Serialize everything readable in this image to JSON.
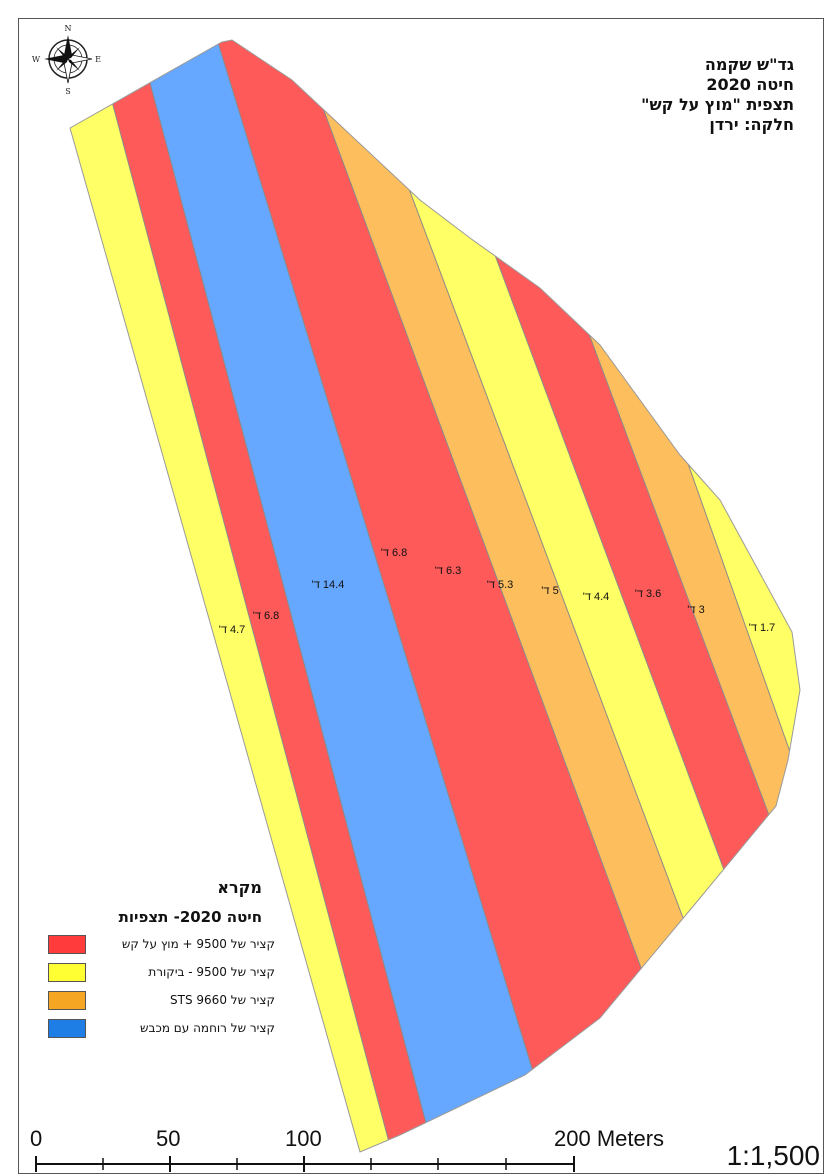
{
  "title": {
    "line1": "גד\"ש שקמה",
    "line2": "חיטה 2020",
    "line3": "תצפית \"מוץ על קש\"",
    "line4": "חלקה: ירדן"
  },
  "compass": {
    "n": "N",
    "s": "S",
    "e": "E",
    "w": "W"
  },
  "strips": [
    {
      "treatment": "control",
      "color": "#ffff66",
      "label": "4.7 ד'"
    },
    {
      "treatment": "chaff_on_straw",
      "color": "#ff5a5a",
      "label": "6.8 ד'"
    },
    {
      "treatment": "spreader",
      "color": "#66a8ff",
      "label": "14.4 ד'"
    },
    {
      "treatment": "chaff_on_straw",
      "color": "#ff5a5a",
      "label": "6.8 ד'"
    },
    {
      "treatment": "sts",
      "color": "#fdbf5e",
      "label": "6.3 ד'"
    },
    {
      "treatment": "control",
      "color": "#ffff66",
      "label": "5.3 ד'"
    },
    {
      "treatment": "chaff_on_straw",
      "color": "#ff5a5a",
      "label": "5 ד'"
    },
    {
      "treatment": "sts",
      "color": "#fdbf5e",
      "label": "4.4 ד'"
    },
    {
      "treatment": "control",
      "color": "#ffff66",
      "label": "3.6 ד'"
    },
    {
      "treatment": "chaff_on_straw",
      "color": "#ff5a5a",
      "label": "3 ד'"
    },
    {
      "treatment": "control",
      "color": "#ffff66",
      "label": "1.7 ד'"
    }
  ],
  "legend": {
    "title": "מקרא",
    "subtitle": "חיטה 2020- תצפיות",
    "items": [
      {
        "label": "קציר של 9500 + מוץ על קש",
        "color": "#ff3b3b"
      },
      {
        "label": "קציר של 9500 - ביקורת",
        "color": "#ffff33"
      },
      {
        "label": "קציר של STS 9660",
        "color": "#f5a623"
      },
      {
        "label": "קציר של רוחמה עם מכבש",
        "color": "#1e7ee6"
      }
    ]
  },
  "scale_bar": {
    "labels": [
      "0",
      "50",
      "100",
      "200 Meters"
    ],
    "ratio": "1:1,500"
  }
}
